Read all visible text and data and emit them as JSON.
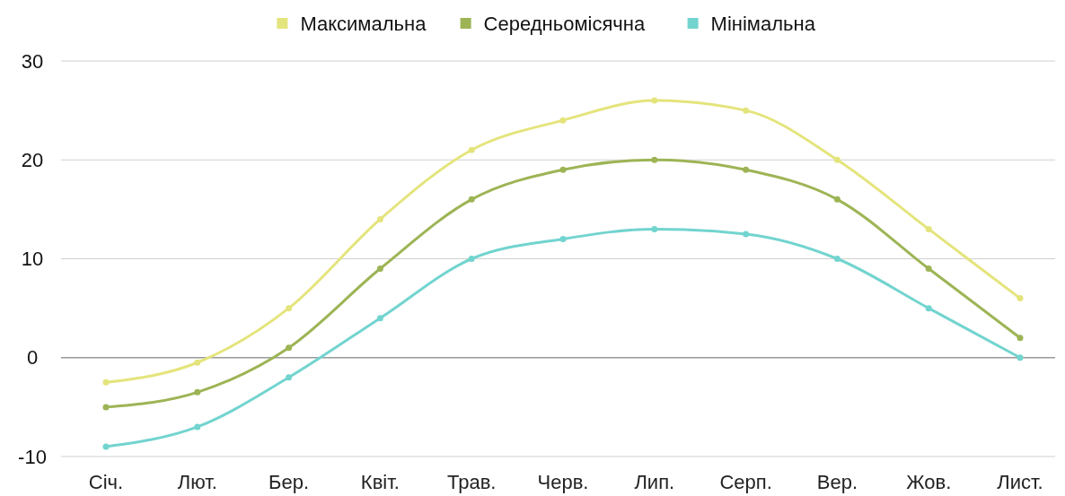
{
  "chart_data": {
    "type": "line",
    "categories": [
      "Січ.",
      "Лют.",
      "Бер.",
      "Квіт.",
      "Трав.",
      "Черв.",
      "Лип.",
      "Серп.",
      "Вер.",
      "Жов.",
      "Лист."
    ],
    "series": [
      {
        "name": "Максимальна",
        "color": "#e4e47c",
        "values": [
          -2.5,
          -0.5,
          5,
          14,
          21,
          24,
          26,
          25,
          20,
          13,
          6
        ]
      },
      {
        "name": "Середньомісячна",
        "color": "#9db455",
        "values": [
          -5,
          -3.5,
          1,
          9,
          16,
          19,
          20,
          19,
          16,
          9,
          2
        ]
      },
      {
        "name": "Мінімальна",
        "color": "#72d4cf",
        "values": [
          -9,
          -7,
          -2,
          4,
          10,
          12,
          13,
          12.5,
          10,
          5,
          0
        ]
      }
    ],
    "ylim": [
      -10,
      30
    ],
    "yticks": [
      -10,
      0,
      10,
      20,
      30
    ],
    "grid": "y",
    "legend": "top",
    "marker": "circle",
    "line_style": "solid"
  }
}
